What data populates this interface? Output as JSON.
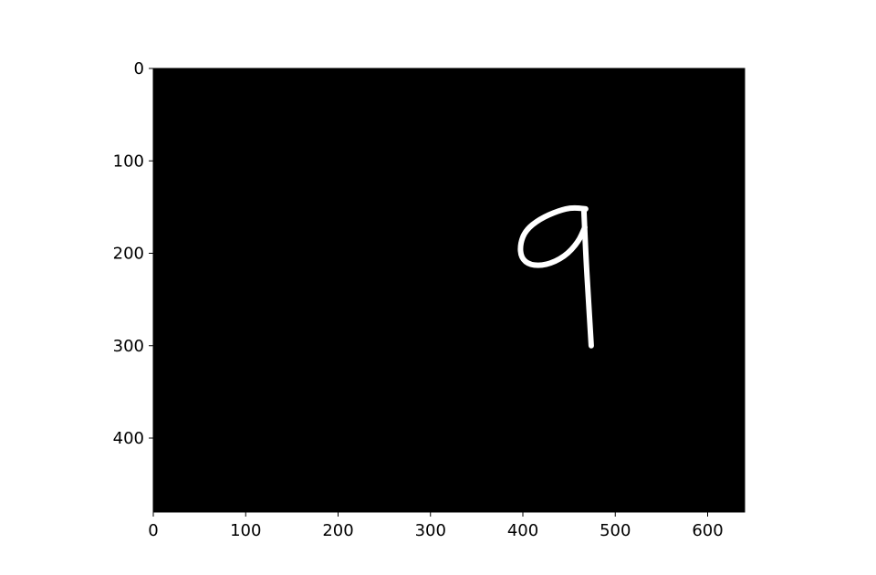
{
  "chart_data": {
    "type": "heatmap",
    "title": "",
    "xlabel": "",
    "ylabel": "",
    "xlim": [
      0,
      640
    ],
    "ylim": [
      480,
      0
    ],
    "x_ticks": [
      0,
      100,
      200,
      300,
      400,
      500,
      600
    ],
    "y_ticks": [
      0,
      100,
      200,
      300,
      400
    ],
    "grid": false,
    "background_color": "#000000",
    "stroke_color": "#ffffff",
    "strokes": [
      {
        "name": "loop",
        "points": [
          [
            468,
            152
          ],
          [
            455,
            150
          ],
          [
            438,
            154
          ],
          [
            418,
            163
          ],
          [
            403,
            175
          ],
          [
            397,
            190
          ],
          [
            398,
            205
          ],
          [
            408,
            213
          ],
          [
            425,
            213
          ],
          [
            445,
            204
          ],
          [
            460,
            188
          ],
          [
            467,
            172
          ]
        ]
      },
      {
        "name": "stem",
        "points": [
          [
            466,
            152
          ],
          [
            468,
            200
          ],
          [
            471,
            250
          ],
          [
            474,
            300
          ]
        ]
      }
    ],
    "image_content": "handwritten digit 9"
  }
}
